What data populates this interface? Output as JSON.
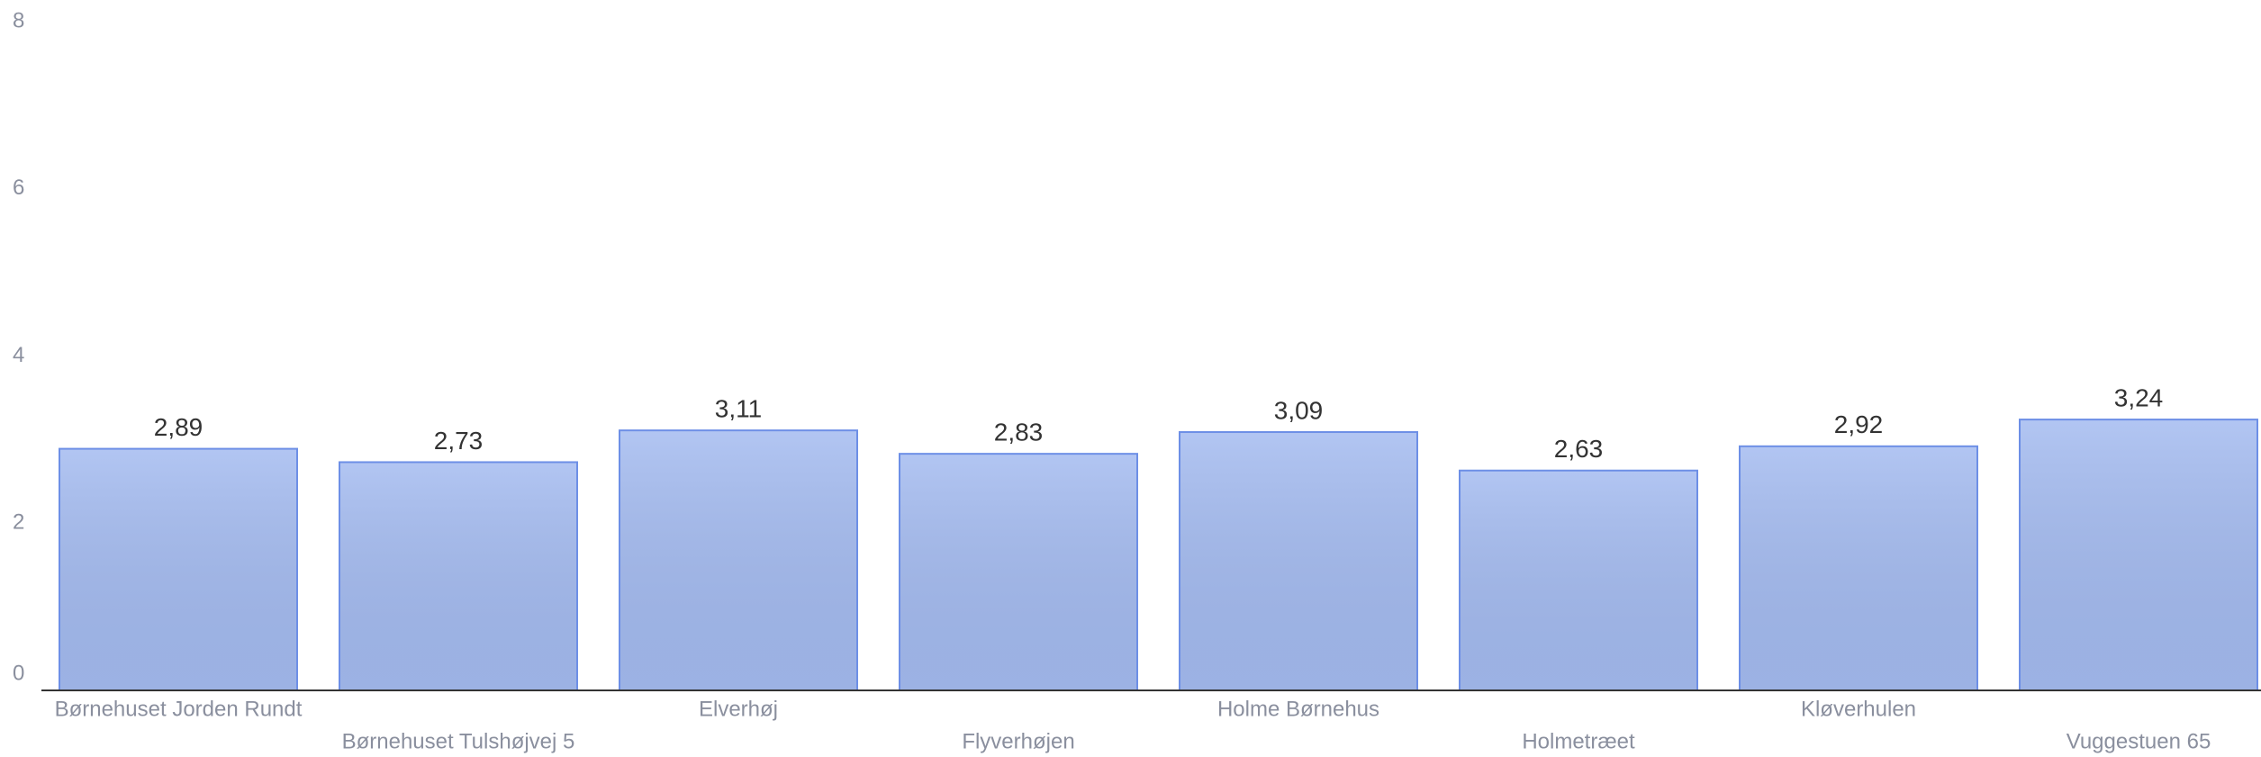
{
  "chart_data": {
    "type": "bar",
    "categories": [
      "Børnehuset Jorden Rundt",
      "Børnehuset Tulshøjvej 5",
      "Elverhøj",
      "Flyverhøjen",
      "Holme Børnehus",
      "Holmetræet",
      "Kløverhulen",
      "Vuggestuen 65"
    ],
    "values": [
      2.89,
      2.73,
      3.11,
      2.83,
      3.09,
      2.63,
      2.92,
      3.24
    ],
    "value_labels": [
      "2,89",
      "2,73",
      "3,11",
      "2,83",
      "3,09",
      "2,63",
      "2,92",
      "3,24"
    ],
    "color": "#a4bbf0",
    "edge_color": "#6d8fe6",
    "ylim": [
      0,
      8
    ],
    "yticks": [
      0,
      2,
      4,
      6,
      8
    ],
    "grid": false
  }
}
